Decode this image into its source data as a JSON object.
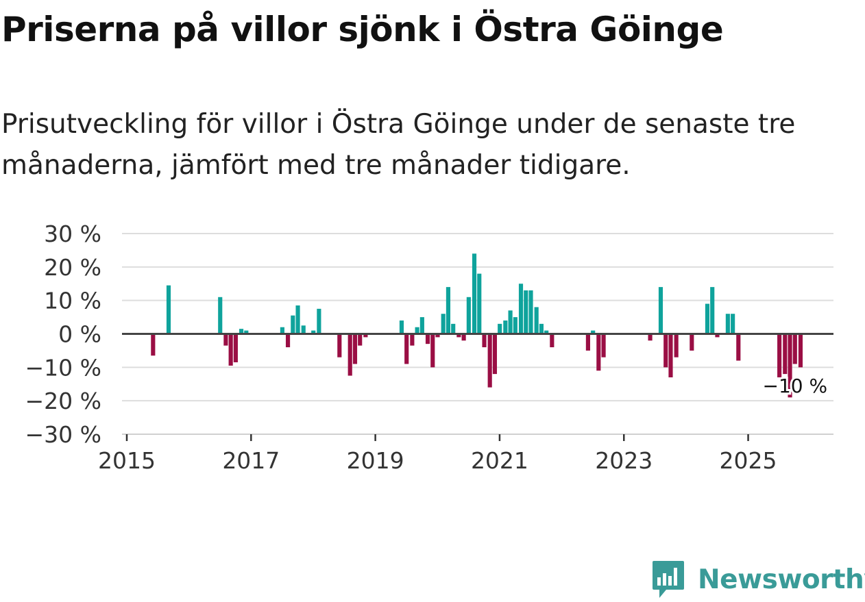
{
  "title": "Priserna på villor sjönk i Östra Göinge",
  "subtitle": "Prisutveckling för villor i Östra Göinge under de senaste tre månaderna, jämfört med tre månader tidigare.",
  "brand": {
    "name": "Newsworthy",
    "color": "#3a9b98"
  },
  "colors": {
    "positive": "#0fa39c",
    "negative": "#9a0e44",
    "grid": "#dddddd",
    "zero_line": "#444444",
    "axis": "#cccccc"
  },
  "chart_data": {
    "type": "bar",
    "title": "Priserna på villor sjönk i Östra Göinge",
    "xlabel": "",
    "ylabel": "",
    "x_unit": "year (monthly bars)",
    "xlim": [
      2015,
      2026.45
    ],
    "ylim": [
      -30,
      30
    ],
    "y_ticks": [
      30,
      20,
      10,
      0,
      -10,
      -20,
      -30
    ],
    "y_tick_labels": [
      "30 %",
      "20 %",
      "10 %",
      "0 %",
      "−10 %",
      "−20 %",
      "−30 %"
    ],
    "x_ticks": [
      2015,
      2017,
      2019,
      2021,
      2023,
      2025
    ],
    "x_tick_labels": [
      "2015",
      "2017",
      "2019",
      "2021",
      "2023",
      "2025"
    ],
    "grid": true,
    "annotation": {
      "text": "−10 %",
      "x": 2025.83,
      "y": -10
    },
    "bars": [
      {
        "x": 2015.5,
        "y": -6.5
      },
      {
        "x": 2015.75,
        "y": 14.5
      },
      {
        "x": 2016.58,
        "y": 11
      },
      {
        "x": 2016.67,
        "y": -3.5
      },
      {
        "x": 2016.75,
        "y": -9.5
      },
      {
        "x": 2016.83,
        "y": -8.5
      },
      {
        "x": 2016.92,
        "y": 1.5
      },
      {
        "x": 2017.0,
        "y": 1
      },
      {
        "x": 2017.58,
        "y": 2
      },
      {
        "x": 2017.67,
        "y": -4
      },
      {
        "x": 2017.75,
        "y": 5.5
      },
      {
        "x": 2017.83,
        "y": 8.5
      },
      {
        "x": 2017.92,
        "y": 2.5
      },
      {
        "x": 2018.08,
        "y": 1
      },
      {
        "x": 2018.17,
        "y": 7.5
      },
      {
        "x": 2018.5,
        "y": -7
      },
      {
        "x": 2018.67,
        "y": -12.5
      },
      {
        "x": 2018.75,
        "y": -9
      },
      {
        "x": 2018.83,
        "y": -3.5
      },
      {
        "x": 2018.92,
        "y": -1
      },
      {
        "x": 2019.5,
        "y": 4
      },
      {
        "x": 2019.58,
        "y": -9
      },
      {
        "x": 2019.67,
        "y": -3.5
      },
      {
        "x": 2019.75,
        "y": 2
      },
      {
        "x": 2019.83,
        "y": 5
      },
      {
        "x": 2019.92,
        "y": -3
      },
      {
        "x": 2020.0,
        "y": -10
      },
      {
        "x": 2020.08,
        "y": -1
      },
      {
        "x": 2020.17,
        "y": 6
      },
      {
        "x": 2020.25,
        "y": 14
      },
      {
        "x": 2020.33,
        "y": 3
      },
      {
        "x": 2020.42,
        "y": -1
      },
      {
        "x": 2020.5,
        "y": -2
      },
      {
        "x": 2020.58,
        "y": 11
      },
      {
        "x": 2020.67,
        "y": 24
      },
      {
        "x": 2020.75,
        "y": 18
      },
      {
        "x": 2020.83,
        "y": -4
      },
      {
        "x": 2020.92,
        "y": -16
      },
      {
        "x": 2021.0,
        "y": -12
      },
      {
        "x": 2021.08,
        "y": 3
      },
      {
        "x": 2021.17,
        "y": 4
      },
      {
        "x": 2021.25,
        "y": 7
      },
      {
        "x": 2021.33,
        "y": 5
      },
      {
        "x": 2021.42,
        "y": 15
      },
      {
        "x": 2021.5,
        "y": 13
      },
      {
        "x": 2021.58,
        "y": 13
      },
      {
        "x": 2021.67,
        "y": 8
      },
      {
        "x": 2021.75,
        "y": 3
      },
      {
        "x": 2021.83,
        "y": 1
      },
      {
        "x": 2021.92,
        "y": -4
      },
      {
        "x": 2022.5,
        "y": -5
      },
      {
        "x": 2022.58,
        "y": 1
      },
      {
        "x": 2022.67,
        "y": -11
      },
      {
        "x": 2022.75,
        "y": -7
      },
      {
        "x": 2023.5,
        "y": -2
      },
      {
        "x": 2023.67,
        "y": 14
      },
      {
        "x": 2023.75,
        "y": -10
      },
      {
        "x": 2023.83,
        "y": -13
      },
      {
        "x": 2023.92,
        "y": -7
      },
      {
        "x": 2024.17,
        "y": -5
      },
      {
        "x": 2024.42,
        "y": 9
      },
      {
        "x": 2024.5,
        "y": 14
      },
      {
        "x": 2024.58,
        "y": -1
      },
      {
        "x": 2024.75,
        "y": 6
      },
      {
        "x": 2024.83,
        "y": 6
      },
      {
        "x": 2024.92,
        "y": -8
      },
      {
        "x": 2025.58,
        "y": -13
      },
      {
        "x": 2025.67,
        "y": -12
      },
      {
        "x": 2025.75,
        "y": -19
      },
      {
        "x": 2025.83,
        "y": -9
      },
      {
        "x": 2025.92,
        "y": -10
      }
    ]
  }
}
